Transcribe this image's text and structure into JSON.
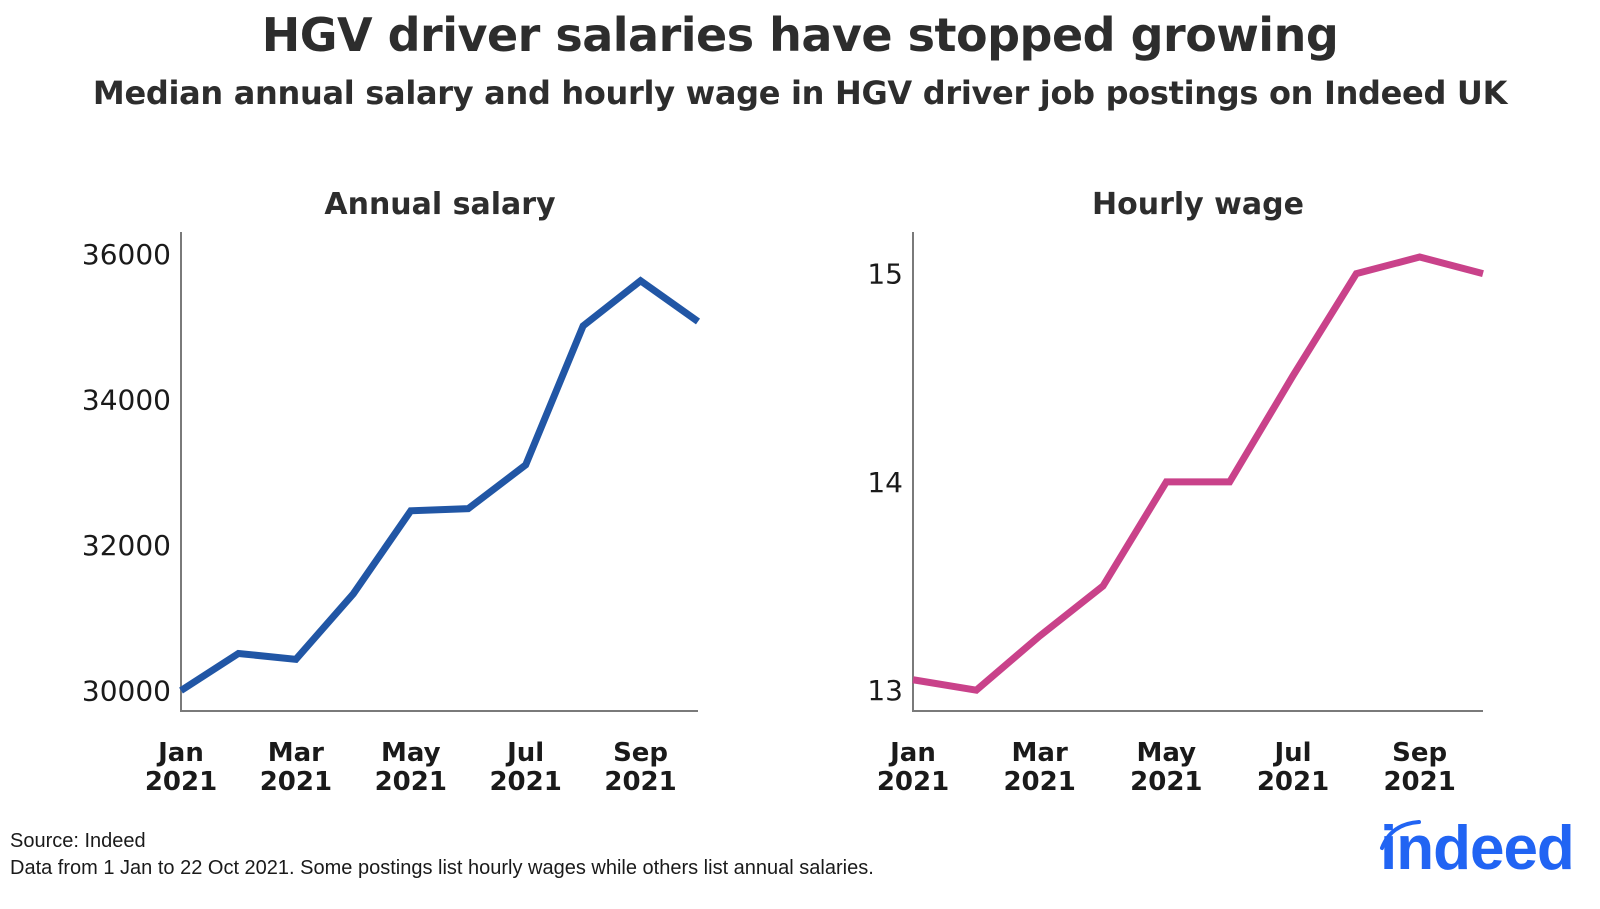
{
  "header": {
    "title": "HGV driver salaries have stopped growing",
    "subtitle": "Median annual salary and hourly wage in HGV driver job postings on Indeed UK"
  },
  "footer": {
    "source": "Source: Indeed",
    "note": "Data from 1 Jan to 22 Oct 2021. Some postings list hourly wages while others list annual salaries.",
    "logo_text": "indeed",
    "logo_color": "#2164f3"
  },
  "chart_data": [
    {
      "type": "line",
      "title": "Annual salary",
      "xlabel": "",
      "ylabel": "",
      "x": [
        "Jan 2021",
        "Feb 2021",
        "Mar 2021",
        "Apr 2021",
        "May 2021",
        "Jun 2021",
        "Jul 2021",
        "Aug 2021",
        "Sep 2021",
        "Oct 2021"
      ],
      "x_ticks": [
        {
          "index": 0,
          "line1": "Jan",
          "line2": "2021"
        },
        {
          "index": 2,
          "line1": "Mar",
          "line2": "2021"
        },
        {
          "index": 4,
          "line1": "May",
          "line2": "2021"
        },
        {
          "index": 6,
          "line1": "Jul",
          "line2": "2021"
        },
        {
          "index": 8,
          "line1": "Sep",
          "line2": "2021"
        }
      ],
      "y_ticks": [
        30000,
        32000,
        34000,
        36000
      ],
      "ylim": [
        29720,
        36300
      ],
      "grid": false,
      "series": [
        {
          "name": "Annual salary",
          "color": "#2156a5",
          "values": [
            30000,
            30510,
            30430,
            31330,
            32470,
            32500,
            33100,
            35010,
            35630,
            35070
          ]
        }
      ]
    },
    {
      "type": "line",
      "title": "Hourly wage",
      "xlabel": "",
      "ylabel": "",
      "x": [
        "Jan 2021",
        "Feb 2021",
        "Mar 2021",
        "Apr 2021",
        "May 2021",
        "Jun 2021",
        "Jul 2021",
        "Aug 2021",
        "Sep 2021",
        "Oct 2021"
      ],
      "x_ticks": [
        {
          "index": 0,
          "line1": "Jan",
          "line2": "2021"
        },
        {
          "index": 2,
          "line1": "Mar",
          "line2": "2021"
        },
        {
          "index": 4,
          "line1": "May",
          "line2": "2021"
        },
        {
          "index": 6,
          "line1": "Jul",
          "line2": "2021"
        },
        {
          "index": 8,
          "line1": "Sep",
          "line2": "2021"
        }
      ],
      "y_ticks": [
        13,
        14,
        15
      ],
      "ylim": [
        12.9,
        15.2
      ],
      "grid": false,
      "series": [
        {
          "name": "Hourly wage",
          "color": "#c9428a",
          "values": [
            13.05,
            13.0,
            13.26,
            13.5,
            14.0,
            14.0,
            14.51,
            15.0,
            15.08,
            15.0
          ]
        }
      ]
    }
  ]
}
